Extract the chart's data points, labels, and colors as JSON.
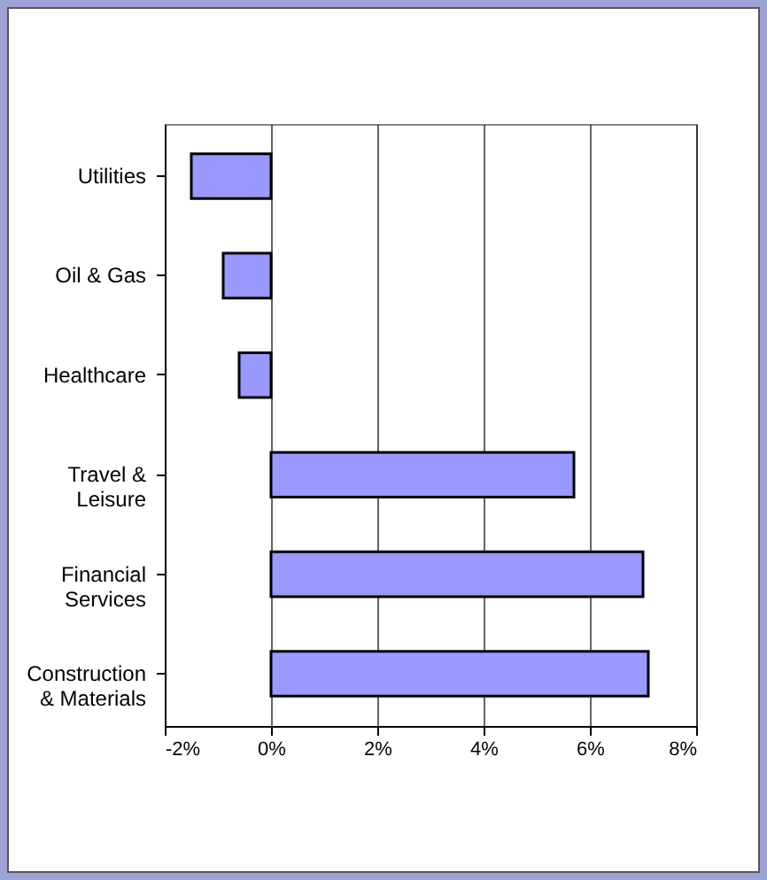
{
  "chart_data": {
    "type": "bar",
    "orientation": "horizontal",
    "categories": [
      "Utilities",
      "Oil & Gas",
      "Healthcare",
      "Travel & Leisure",
      "Financial Services",
      "Construction & Materials"
    ],
    "values": [
      -1.5,
      -0.9,
      -0.6,
      5.7,
      7.0,
      7.1
    ],
    "color": "#9999ff",
    "xlim": [
      -2,
      8
    ],
    "xticks": [
      {
        "value": -2,
        "label": "-2%"
      },
      {
        "value": 0,
        "label": "0%"
      },
      {
        "value": 2,
        "label": "2%"
      },
      {
        "value": 4,
        "label": "4%"
      },
      {
        "value": 6,
        "label": "6%"
      },
      {
        "value": 8,
        "label": "8%"
      }
    ],
    "grid": "x"
  }
}
